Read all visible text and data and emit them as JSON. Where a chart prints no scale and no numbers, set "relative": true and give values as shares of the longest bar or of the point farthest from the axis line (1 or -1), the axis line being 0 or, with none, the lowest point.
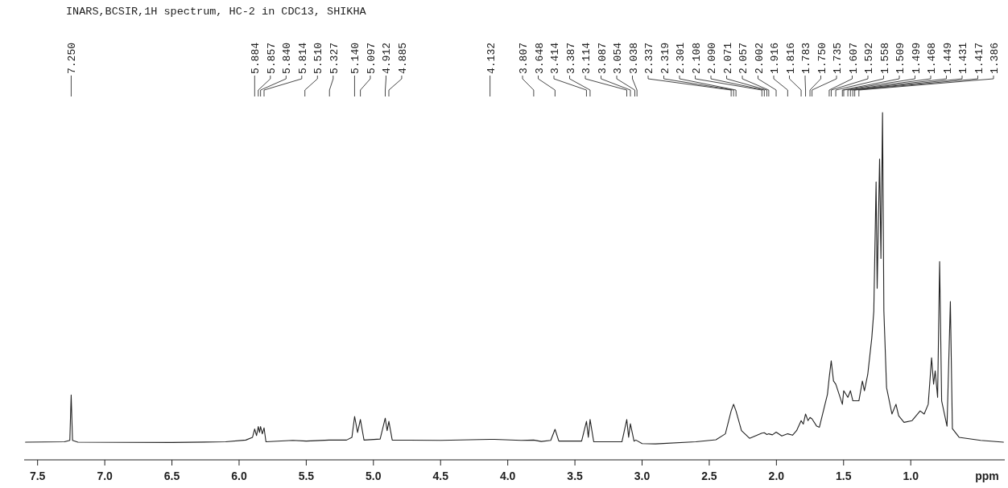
{
  "chart_data": {
    "type": "line",
    "title": "INARS,BCSIR,1H spectrum, HC-2 in CDC13, SHIKHA",
    "xlabel": "ppm",
    "relative": true,
    "tick_labels": "x",
    "line_style": "solid",
    "xlim": [
      7.6,
      0.3
    ],
    "xticks": [
      7.5,
      {
        "value": 7,
        "label": "7.0"
      },
      6.5,
      {
        "value": 6,
        "label": "6.0"
      },
      5.5,
      {
        "value": 5,
        "label": "5.0"
      },
      4.5,
      {
        "value": 4,
        "label": "4.0"
      },
      3.5,
      {
        "value": 3,
        "label": "3.0"
      },
      2.5,
      {
        "value": 2,
        "label": "2.0"
      },
      1.5,
      {
        "value": 1,
        "label": "1.0"
      }
    ],
    "annotations": [
      {
        "text": "7.250",
        "x": 7.25
      },
      {
        "text": "5.884",
        "x": 5.884
      },
      {
        "text": "5.857",
        "x": 5.857
      },
      {
        "text": "5.840",
        "x": 5.84
      },
      {
        "text": "5.814",
        "x": 5.814
      },
      {
        "text": "5.510",
        "x": 5.51
      },
      {
        "text": "5.327",
        "x": 5.327
      },
      {
        "text": "5.140",
        "x": 5.14
      },
      {
        "text": "5.097",
        "x": 5.097
      },
      {
        "text": "4.912",
        "x": 4.912
      },
      {
        "text": "4.885",
        "x": 4.885
      },
      {
        "text": "4.132",
        "x": 4.132
      },
      {
        "text": "3.807",
        "x": 3.807
      },
      {
        "text": "3.648",
        "x": 3.648
      },
      {
        "text": "3.414",
        "x": 3.414
      },
      {
        "text": "3.387",
        "x": 3.387
      },
      {
        "text": "3.114",
        "x": 3.114
      },
      {
        "text": "3.087",
        "x": 3.087
      },
      {
        "text": "3.054",
        "x": 3.054
      },
      {
        "text": "3.038",
        "x": 3.038
      },
      {
        "text": "2.337",
        "x": 2.337
      },
      {
        "text": "2.319",
        "x": 2.319
      },
      {
        "text": "2.301",
        "x": 2.301
      },
      {
        "text": "2.108",
        "x": 2.108
      },
      {
        "text": "2.090",
        "x": 2.09
      },
      {
        "text": "2.071",
        "x": 2.071
      },
      {
        "text": "2.057",
        "x": 2.057
      },
      {
        "text": "2.002",
        "x": 2.002
      },
      {
        "text": "1.916",
        "x": 1.916
      },
      {
        "text": "1.816",
        "x": 1.816
      },
      {
        "text": "1.783",
        "x": 1.783
      },
      {
        "text": "1.750",
        "x": 1.75
      },
      {
        "text": "1.735",
        "x": 1.735
      },
      {
        "text": "1.607",
        "x": 1.607
      },
      {
        "text": "1.592",
        "x": 1.592
      },
      {
        "text": "1.558",
        "x": 1.558
      },
      {
        "text": "1.509",
        "x": 1.509
      },
      {
        "text": "1.499",
        "x": 1.499
      },
      {
        "text": "1.468",
        "x": 1.468
      },
      {
        "text": "1.449",
        "x": 1.449
      },
      {
        "text": "1.431",
        "x": 1.431
      },
      {
        "text": "1.417",
        "x": 1.417
      },
      {
        "text": "1.386",
        "x": 1.386
      }
    ],
    "x": [
      7.59,
      7.3,
      7.26,
      7.25,
      7.24,
      7.2,
      6.5,
      6.1,
      5.95,
      5.9,
      5.884,
      5.87,
      5.857,
      5.848,
      5.84,
      5.827,
      5.814,
      5.8,
      5.6,
      5.5,
      5.33,
      5.2,
      5.16,
      5.14,
      5.118,
      5.097,
      5.07,
      4.95,
      4.912,
      4.898,
      4.885,
      4.86,
      4.5,
      4.132,
      4.1,
      3.9,
      3.807,
      3.75,
      3.68,
      3.648,
      3.62,
      3.45,
      3.414,
      3.4,
      3.387,
      3.36,
      3.15,
      3.114,
      3.1,
      3.087,
      3.06,
      3.046,
      3.0,
      2.9,
      2.6,
      2.45,
      2.38,
      2.337,
      2.319,
      2.301,
      2.26,
      2.2,
      2.108,
      2.09,
      2.071,
      2.057,
      2.03,
      2.002,
      1.96,
      1.916,
      1.88,
      1.85,
      1.816,
      1.8,
      1.783,
      1.765,
      1.75,
      1.735,
      1.7,
      1.68,
      1.62,
      1.607,
      1.592,
      1.575,
      1.558,
      1.509,
      1.499,
      1.468,
      1.449,
      1.431,
      1.386,
      1.36,
      1.345,
      1.32,
      1.29,
      1.275,
      1.258,
      1.25,
      1.232,
      1.222,
      1.21,
      1.2,
      1.18,
      1.14,
      1.11,
      1.09,
      1.05,
      0.99,
      0.93,
      0.9,
      0.87,
      0.845,
      0.83,
      0.818,
      0.8,
      0.785,
      0.77,
      0.73,
      0.705,
      0.69,
      0.64,
      0.48,
      0.31
    ],
    "series": [
      {
        "color": "#222222",
        "values": [
          0.051,
          0.052,
          0.056,
          0.187,
          0.056,
          0.051,
          0.05,
          0.052,
          0.057,
          0.065,
          0.089,
          0.07,
          0.096,
          0.079,
          0.096,
          0.075,
          0.092,
          0.052,
          0.056,
          0.054,
          0.057,
          0.057,
          0.065,
          0.125,
          0.079,
          0.116,
          0.057,
          0.06,
          0.12,
          0.084,
          0.111,
          0.057,
          0.056,
          0.059,
          0.059,
          0.056,
          0.057,
          0.053,
          0.056,
          0.088,
          0.054,
          0.054,
          0.111,
          0.065,
          0.116,
          0.052,
          0.052,
          0.116,
          0.065,
          0.104,
          0.054,
          0.057,
          0.047,
          0.046,
          0.052,
          0.058,
          0.075,
          0.141,
          0.16,
          0.141,
          0.084,
          0.062,
          0.077,
          0.078,
          0.073,
          0.075,
          0.072,
          0.08,
          0.069,
          0.075,
          0.071,
          0.084,
          0.113,
          0.103,
          0.132,
          0.113,
          0.122,
          0.118,
          0.097,
          0.094,
          0.189,
          0.237,
          0.285,
          0.227,
          0.218,
          0.16,
          0.199,
          0.18,
          0.199,
          0.17,
          0.17,
          0.227,
          0.199,
          0.246,
          0.351,
          0.428,
          0.8,
          0.494,
          0.866,
          0.58,
          1.0,
          0.428,
          0.208,
          0.132,
          0.16,
          0.127,
          0.108,
          0.113,
          0.141,
          0.132,
          0.16,
          0.294,
          0.218,
          0.256,
          0.18,
          0.571,
          0.17,
          0.097,
          0.456,
          0.09,
          0.065,
          0.056,
          0.051
        ]
      }
    ]
  }
}
